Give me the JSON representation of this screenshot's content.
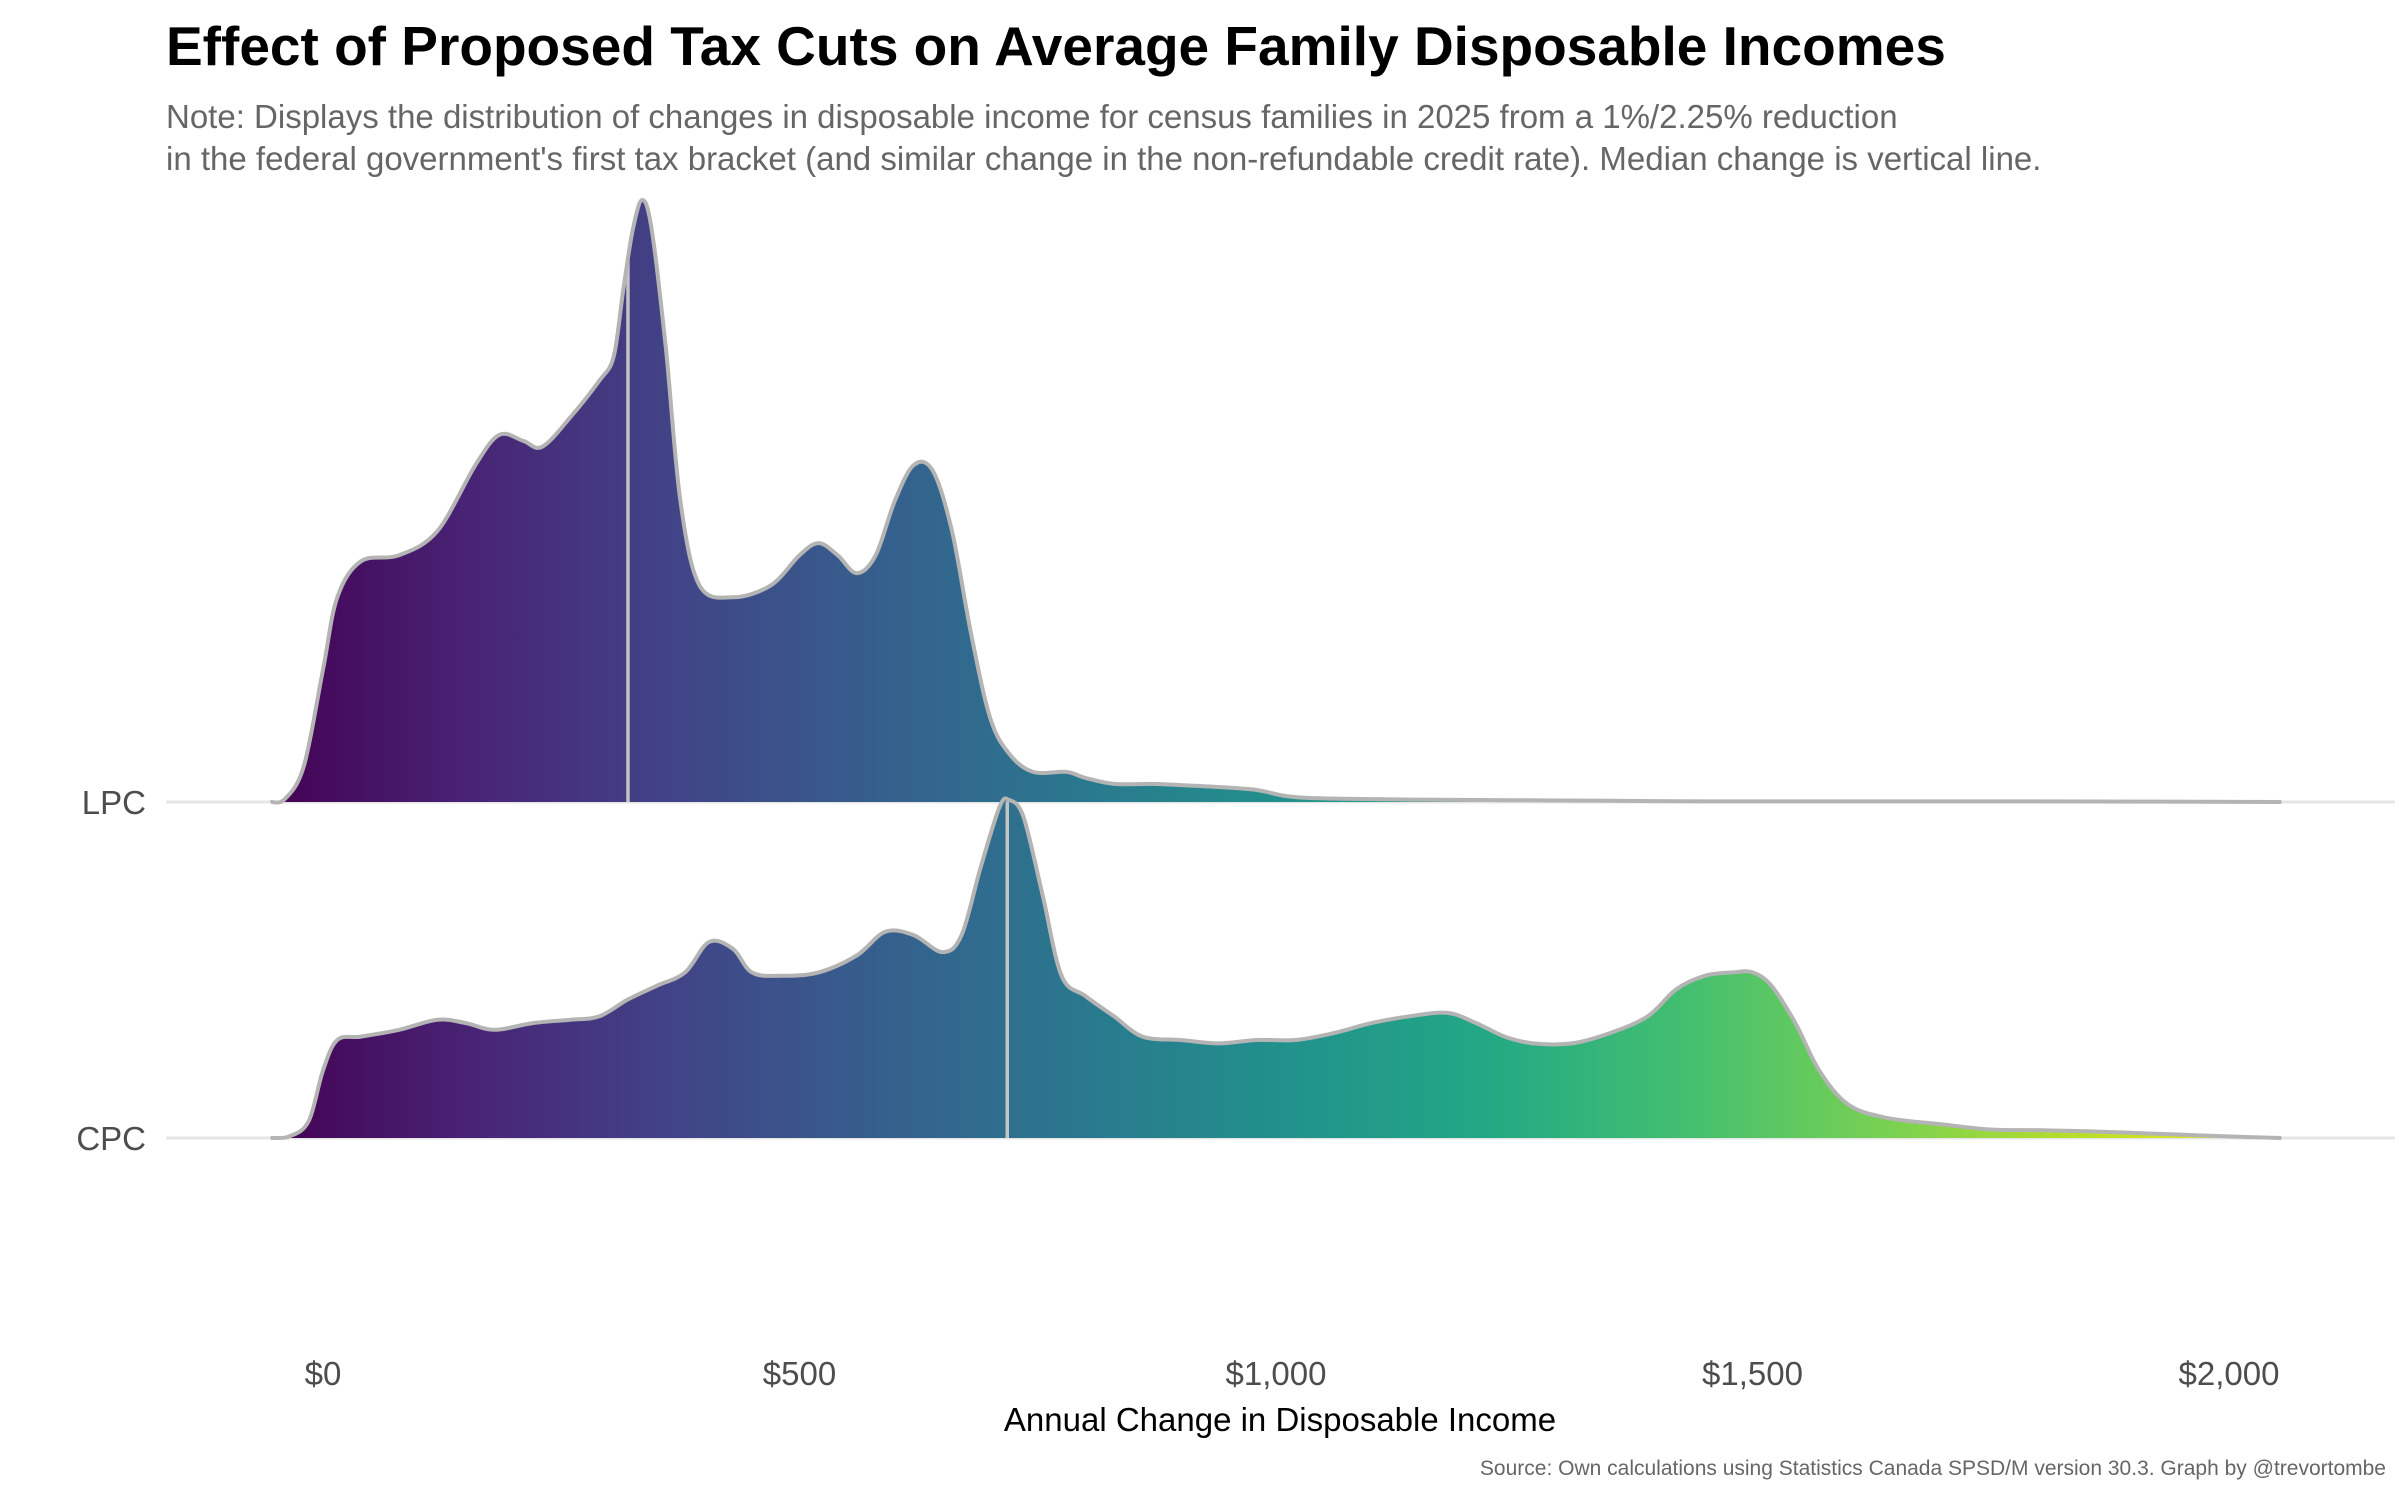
{
  "chart_data": {
    "type": "ridgeline",
    "title": "Effect of Proposed Tax Cuts on Average Family Disposable Incomes",
    "subtitle_lines": [
      "Note: Displays the distribution of changes in disposable income for census families in 2025 from a 1%/2.25% reduction",
      "in the federal government's first tax bracket (and similar change in the non-refundable credit rate). Median change is vertical line."
    ],
    "xlabel": "Annual Change in Disposable Income",
    "caption": "Source: Own calculations using Statistics Canada SPSD/M version 30.3. Graph by @trevortombe",
    "xlim": [
      -55,
      2055
    ],
    "x_ticks": [
      {
        "value": 0,
        "label": "$0"
      },
      {
        "value": 500,
        "label": "$500"
      },
      {
        "value": 1000,
        "label": "$1,000"
      },
      {
        "value": 1500,
        "label": "$1,500"
      },
      {
        "value": 2000,
        "label": "$2,000"
      }
    ],
    "grid": "horizontal baselines only",
    "fill": "viridis gradient along x",
    "outline_color": "#b4b4b4",
    "series": [
      {
        "name": "LPC",
        "median": 320,
        "density": [
          [
            -55,
            0
          ],
          [
            -40,
            0.005
          ],
          [
            -20,
            0.06
          ],
          [
            0,
            0.22
          ],
          [
            15,
            0.34
          ],
          [
            40,
            0.4
          ],
          [
            80,
            0.41
          ],
          [
            120,
            0.45
          ],
          [
            160,
            0.56
          ],
          [
            185,
            0.61
          ],
          [
            210,
            0.6
          ],
          [
            230,
            0.59
          ],
          [
            260,
            0.64
          ],
          [
            290,
            0.7
          ],
          [
            305,
            0.74
          ],
          [
            315,
            0.85
          ],
          [
            325,
            0.95
          ],
          [
            335,
            1.0
          ],
          [
            345,
            0.95
          ],
          [
            360,
            0.75
          ],
          [
            375,
            0.5
          ],
          [
            395,
            0.36
          ],
          [
            430,
            0.34
          ],
          [
            470,
            0.36
          ],
          [
            500,
            0.41
          ],
          [
            520,
            0.43
          ],
          [
            540,
            0.41
          ],
          [
            560,
            0.38
          ],
          [
            580,
            0.41
          ],
          [
            600,
            0.5
          ],
          [
            620,
            0.56
          ],
          [
            640,
            0.55
          ],
          [
            660,
            0.45
          ],
          [
            680,
            0.28
          ],
          [
            700,
            0.14
          ],
          [
            720,
            0.08
          ],
          [
            745,
            0.05
          ],
          [
            780,
            0.05
          ],
          [
            800,
            0.04
          ],
          [
            830,
            0.03
          ],
          [
            870,
            0.03
          ],
          [
            900,
            0.028
          ],
          [
            940,
            0.025
          ],
          [
            980,
            0.02
          ],
          [
            1010,
            0.01
          ],
          [
            1050,
            0.006
          ],
          [
            1150,
            0.004
          ],
          [
            1250,
            0.003
          ],
          [
            1350,
            0.002
          ],
          [
            1450,
            0.001
          ],
          [
            1600,
            0.001
          ],
          [
            1800,
            0.001
          ],
          [
            2055,
            0
          ]
        ]
      },
      {
        "name": "CPC",
        "median": 718,
        "density": [
          [
            -55,
            0
          ],
          [
            -35,
            0.005
          ],
          [
            -15,
            0.05
          ],
          [
            0,
            0.2
          ],
          [
            15,
            0.29
          ],
          [
            40,
            0.3
          ],
          [
            80,
            0.32
          ],
          [
            120,
            0.35
          ],
          [
            150,
            0.34
          ],
          [
            180,
            0.32
          ],
          [
            220,
            0.34
          ],
          [
            260,
            0.35
          ],
          [
            290,
            0.36
          ],
          [
            320,
            0.41
          ],
          [
            350,
            0.45
          ],
          [
            380,
            0.49
          ],
          [
            405,
            0.58
          ],
          [
            430,
            0.56
          ],
          [
            450,
            0.49
          ],
          [
            480,
            0.48
          ],
          [
            520,
            0.49
          ],
          [
            560,
            0.54
          ],
          [
            590,
            0.61
          ],
          [
            620,
            0.6
          ],
          [
            650,
            0.55
          ],
          [
            670,
            0.6
          ],
          [
            690,
            0.8
          ],
          [
            710,
            0.98
          ],
          [
            720,
            1.0
          ],
          [
            735,
            0.95
          ],
          [
            755,
            0.72
          ],
          [
            775,
            0.48
          ],
          [
            800,
            0.42
          ],
          [
            830,
            0.36
          ],
          [
            860,
            0.3
          ],
          [
            900,
            0.29
          ],
          [
            940,
            0.28
          ],
          [
            980,
            0.29
          ],
          [
            1020,
            0.29
          ],
          [
            1060,
            0.31
          ],
          [
            1100,
            0.34
          ],
          [
            1140,
            0.36
          ],
          [
            1180,
            0.37
          ],
          [
            1210,
            0.34
          ],
          [
            1240,
            0.3
          ],
          [
            1270,
            0.28
          ],
          [
            1310,
            0.28
          ],
          [
            1350,
            0.31
          ],
          [
            1390,
            0.36
          ],
          [
            1420,
            0.44
          ],
          [
            1450,
            0.48
          ],
          [
            1480,
            0.49
          ],
          [
            1500,
            0.49
          ],
          [
            1520,
            0.45
          ],
          [
            1545,
            0.34
          ],
          [
            1570,
            0.2
          ],
          [
            1600,
            0.1
          ],
          [
            1640,
            0.06
          ],
          [
            1700,
            0.04
          ],
          [
            1750,
            0.025
          ],
          [
            1800,
            0.023
          ],
          [
            1850,
            0.02
          ],
          [
            1900,
            0.015
          ],
          [
            1950,
            0.01
          ],
          [
            1995,
            0.005
          ],
          [
            2055,
            0
          ]
        ]
      }
    ]
  }
}
